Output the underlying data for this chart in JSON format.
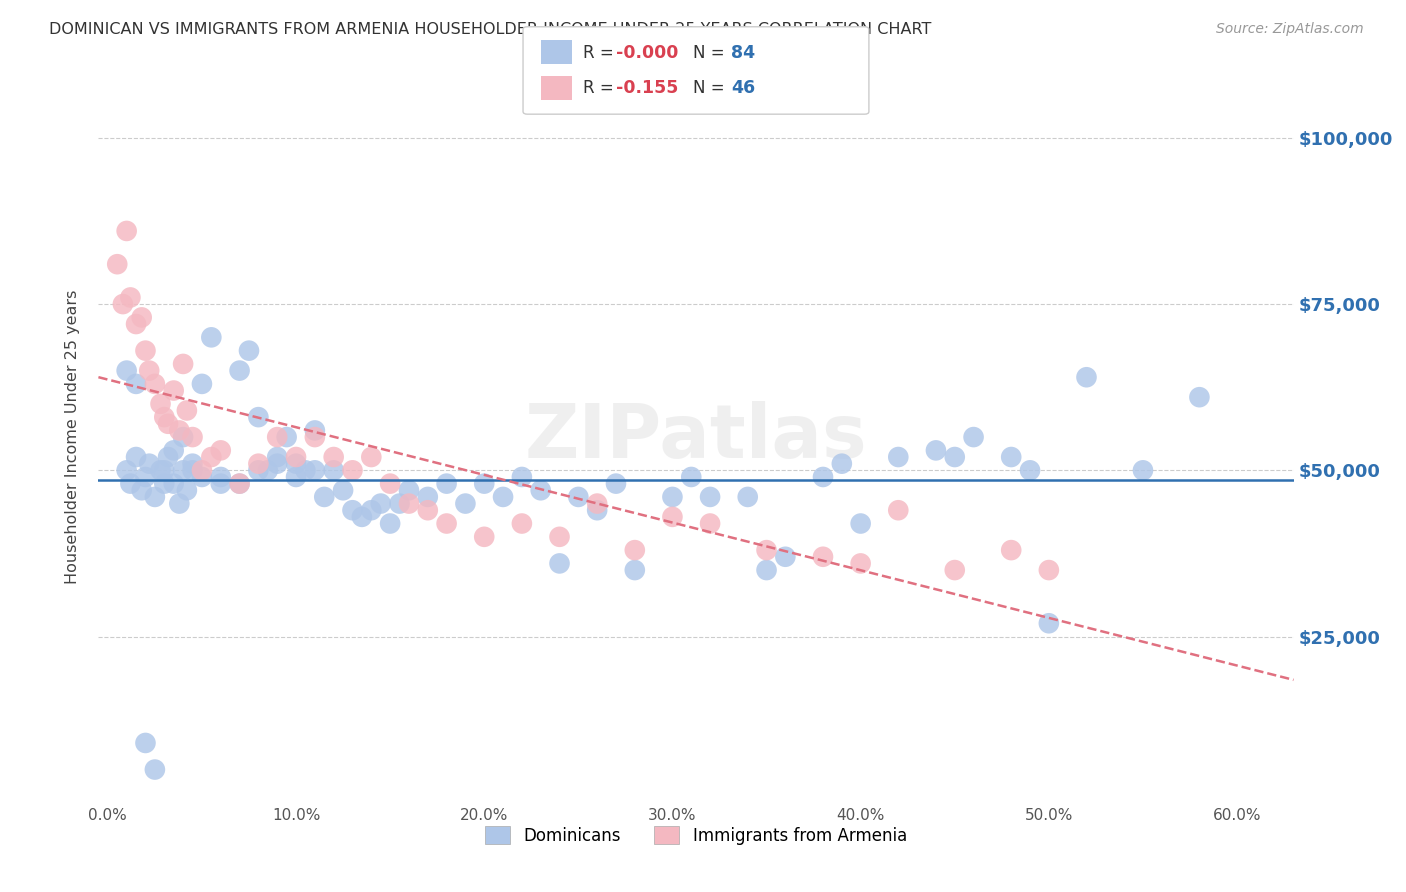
{
  "title": "DOMINICAN VS IMMIGRANTS FROM ARMENIA HOUSEHOLDER INCOME UNDER 25 YEARS CORRELATION CHART",
  "source": "Source: ZipAtlas.com",
  "ylabel": "Householder Income Under 25 years",
  "ytick_labels": [
    "$25,000",
    "$50,000",
    "$75,000",
    "$100,000"
  ],
  "ytick_vals": [
    25000,
    50000,
    75000,
    100000
  ],
  "xlabel_vals": [
    0,
    10,
    20,
    30,
    40,
    50,
    60
  ],
  "ylim": [
    0,
    110000
  ],
  "xlim": [
    -0.5,
    63
  ],
  "blue_R": "-0.000",
  "blue_N": "84",
  "pink_R": "-0.155",
  "pink_N": "46",
  "blue_color": "#aec6e8",
  "pink_color": "#f4b8c1",
  "blue_line_color": "#3070b0",
  "pink_line_color": "#e07080",
  "watermark": "ZIPatlas",
  "legend_blue_label": "Dominicans",
  "legend_pink_label": "Immigrants from Armenia",
  "blue_x": [
    1.0,
    1.2,
    1.5,
    1.8,
    2.0,
    2.2,
    2.5,
    2.8,
    3.0,
    3.2,
    3.5,
    3.8,
    4.0,
    4.2,
    4.5,
    5.0,
    5.5,
    6.0,
    7.0,
    7.5,
    8.0,
    8.5,
    9.0,
    9.5,
    10.0,
    10.5,
    11.0,
    11.5,
    12.0,
    12.5,
    13.0,
    13.5,
    14.0,
    14.5,
    15.0,
    15.5,
    16.0,
    17.0,
    18.0,
    19.0,
    20.0,
    21.0,
    22.0,
    23.0,
    24.0,
    25.0,
    26.0,
    27.0,
    28.0,
    30.0,
    31.0,
    32.0,
    34.0,
    35.0,
    36.0,
    38.0,
    39.0,
    40.0,
    42.0,
    44.0,
    45.0,
    46.0,
    48.0,
    49.0,
    50.0,
    52.0,
    55.0,
    58.0,
    1.0,
    1.5,
    2.0,
    2.5,
    3.0,
    3.5,
    4.0,
    4.5,
    5.0,
    6.0,
    7.0,
    8.0,
    9.0,
    10.0,
    11.0
  ],
  "blue_y": [
    50000,
    48000,
    52000,
    47000,
    49000,
    51000,
    46000,
    50000,
    48000,
    52000,
    53000,
    45000,
    55000,
    47000,
    51000,
    63000,
    70000,
    48000,
    65000,
    68000,
    58000,
    50000,
    52000,
    55000,
    51000,
    50000,
    56000,
    46000,
    50000,
    47000,
    44000,
    43000,
    44000,
    45000,
    42000,
    45000,
    47000,
    46000,
    48000,
    45000,
    48000,
    46000,
    49000,
    47000,
    36000,
    46000,
    44000,
    48000,
    35000,
    46000,
    49000,
    46000,
    46000,
    35000,
    37000,
    49000,
    51000,
    42000,
    52000,
    53000,
    52000,
    55000,
    52000,
    50000,
    27000,
    64000,
    50000,
    61000,
    65000,
    63000,
    9000,
    5000,
    50000,
    48000,
    50000,
    50000,
    49000,
    49000,
    48000,
    50000,
    51000,
    49000,
    50000
  ],
  "pink_x": [
    0.5,
    0.8,
    1.0,
    1.2,
    1.5,
    1.8,
    2.0,
    2.2,
    2.5,
    2.8,
    3.0,
    3.2,
    3.5,
    3.8,
    4.0,
    4.2,
    4.5,
    5.0,
    5.5,
    6.0,
    7.0,
    8.0,
    9.0,
    10.0,
    11.0,
    12.0,
    13.0,
    14.0,
    15.0,
    16.0,
    17.0,
    18.0,
    20.0,
    22.0,
    24.0,
    26.0,
    28.0,
    30.0,
    32.0,
    35.0,
    38.0,
    40.0,
    42.0,
    45.0,
    48.0,
    50.0
  ],
  "pink_y": [
    81000,
    75000,
    86000,
    76000,
    72000,
    73000,
    68000,
    65000,
    63000,
    60000,
    58000,
    57000,
    62000,
    56000,
    66000,
    59000,
    55000,
    50000,
    52000,
    53000,
    48000,
    51000,
    55000,
    52000,
    55000,
    52000,
    50000,
    52000,
    48000,
    45000,
    44000,
    42000,
    40000,
    42000,
    40000,
    45000,
    38000,
    43000,
    42000,
    38000,
    37000,
    36000,
    44000,
    35000,
    38000,
    35000
  ]
}
